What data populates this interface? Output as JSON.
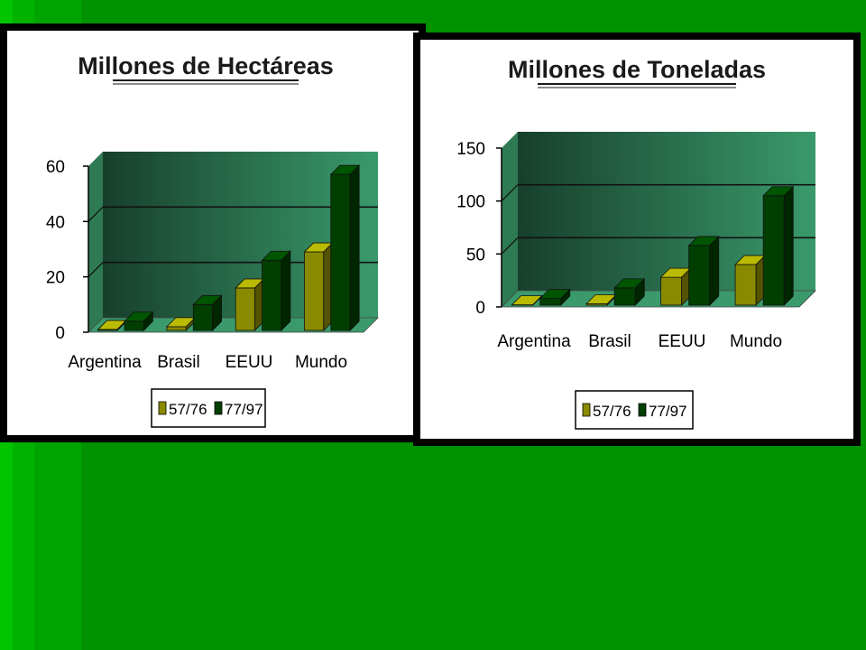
{
  "colors": {
    "background": "#009200",
    "series_a": "#8a8a00",
    "series_b": "#003f00",
    "wall_dark": "#173f2c",
    "wall_light": "#3a9a6c"
  },
  "chart_data": [
    {
      "type": "bar",
      "title": "Millones de Hectáreas",
      "categories": [
        "Argentina",
        "Brasil",
        "EEUU",
        "Mundo"
      ],
      "series": [
        {
          "name": "57/76",
          "values": [
            1,
            2,
            16,
            29
          ]
        },
        {
          "name": "77/97",
          "values": [
            4,
            10,
            26,
            57
          ]
        }
      ],
      "ylim": [
        0,
        60
      ],
      "yticks": [
        0,
        20,
        40,
        60
      ],
      "grid": true,
      "legend": "bottom"
    },
    {
      "type": "bar",
      "title": "Millones de Toneladas",
      "categories": [
        "Argentina",
        "Brasil",
        "EEUU",
        "Mundo"
      ],
      "series": [
        {
          "name": "57/76",
          "values": [
            2,
            3,
            28,
            40
          ]
        },
        {
          "name": "77/97",
          "values": [
            8,
            18,
            58,
            105
          ]
        }
      ],
      "ylim": [
        0,
        150
      ],
      "yticks": [
        0,
        50,
        100,
        150
      ],
      "grid": true,
      "legend": "bottom"
    }
  ]
}
